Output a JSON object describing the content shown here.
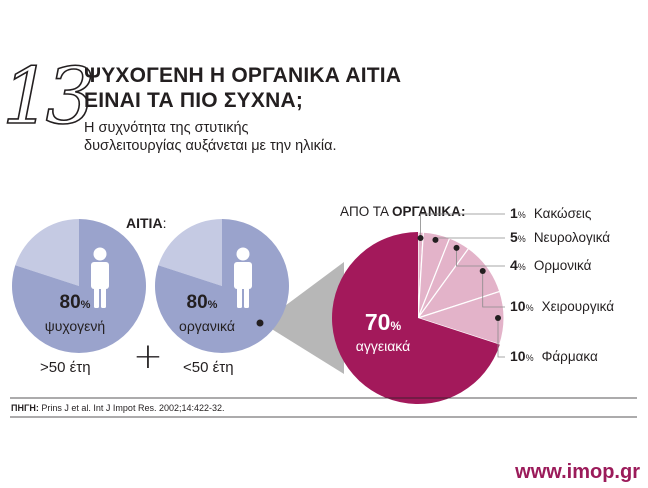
{
  "header": {
    "number": "13",
    "title_line1": "ΨΥΧΟΓΕΝΗ Η ΟΡΓΑΝΙΚΑ ΑΙΤΙΑ",
    "title_line2": "ΕΙΝΑΙ ΤΑ ΠΙΟ ΣΥΧΝΑ;",
    "subtitle_line1": "Η συχνότητα της στυτικής",
    "subtitle_line2": "δυσλειτουργίας αυξάνεται με την ηλικία."
  },
  "colors": {
    "blue_main": "#9aa3cc",
    "blue_light": "#c5cae3",
    "magenta": "#a3195b",
    "pink": "#e3b3c9",
    "grey_cone": "#b7b7b7",
    "brand": "#9b1b5a"
  },
  "chart_data": [
    {
      "type": "pie",
      "header_label": "ΑΙΤΙΑ",
      "header_suffix": ":",
      "label": "ψυχογενή",
      "value": 80,
      "value_text": "80",
      "value_suffix": "%",
      "remainder": 20,
      "group": ">50 έτη",
      "icon": "person-icon"
    },
    {
      "type": "pie",
      "label": "οργανικά",
      "value": 80,
      "value_text": "80",
      "value_suffix": "%",
      "remainder": 20,
      "group": "<50 έτη",
      "icon": "person-icon"
    },
    {
      "type": "pie",
      "title_prefix": "ΑΠΟ ΤΑ ",
      "title_bold": "ΟΡΓΑΝΙΚΑ",
      "title_suffix": ":",
      "categories": [
        "Κακώσεις",
        "Νευρολογικά",
        "Ορμονικά",
        "Χειρουργικά",
        "Φάρμακα",
        "αγγειακά"
      ],
      "values": [
        1,
        5,
        4,
        10,
        10,
        70
      ],
      "value_texts": [
        "1",
        "5",
        "4",
        "10",
        "10",
        "70"
      ],
      "percent_sign": "%"
    }
  ],
  "plus_sign": "+",
  "source": {
    "label": "ΠΗΓΗ:",
    "text": " Prins J et al. Int J Impot Res. 2002;14:422-32."
  },
  "website": "www.imop.gr"
}
